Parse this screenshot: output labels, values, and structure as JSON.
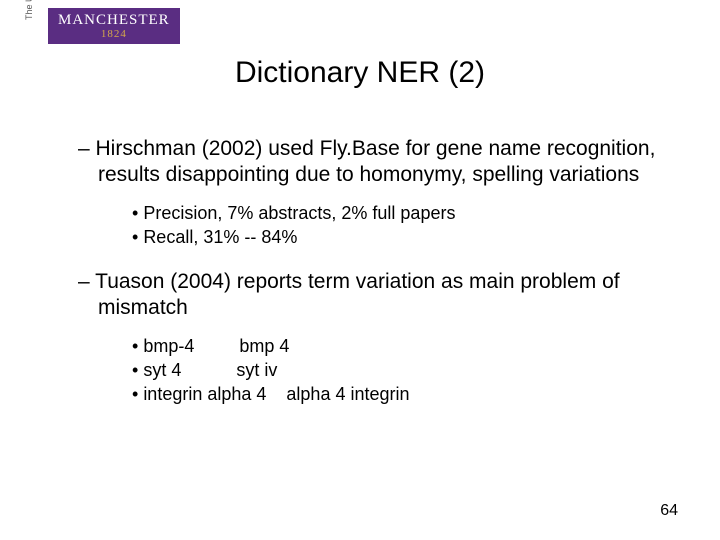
{
  "logo": {
    "name": "MANCHESTER",
    "year": "1824",
    "sidetext": "The University of Manchester"
  },
  "title": "Dictionary NER (2)",
  "bullets": [
    {
      "text": "Hirschman (2002) used Fly.Base for gene name recognition, results disappointing due to homonymy, spelling variations",
      "subs": [
        "Precision, 7% abstracts, 2% full papers",
        "Recall, 31% -- 84%"
      ]
    },
    {
      "text": "Tuason (2004) reports term variation as main problem of mismatch",
      "subs": [
        "bmp-4         bmp 4",
        "syt 4           syt iv",
        "integrin alpha 4    alpha 4 integrin"
      ]
    }
  ],
  "page_number": "64",
  "colors": {
    "logo_bg": "#5a2d82",
    "logo_year": "#d4a84b",
    "text": "#000000",
    "background": "#ffffff"
  }
}
